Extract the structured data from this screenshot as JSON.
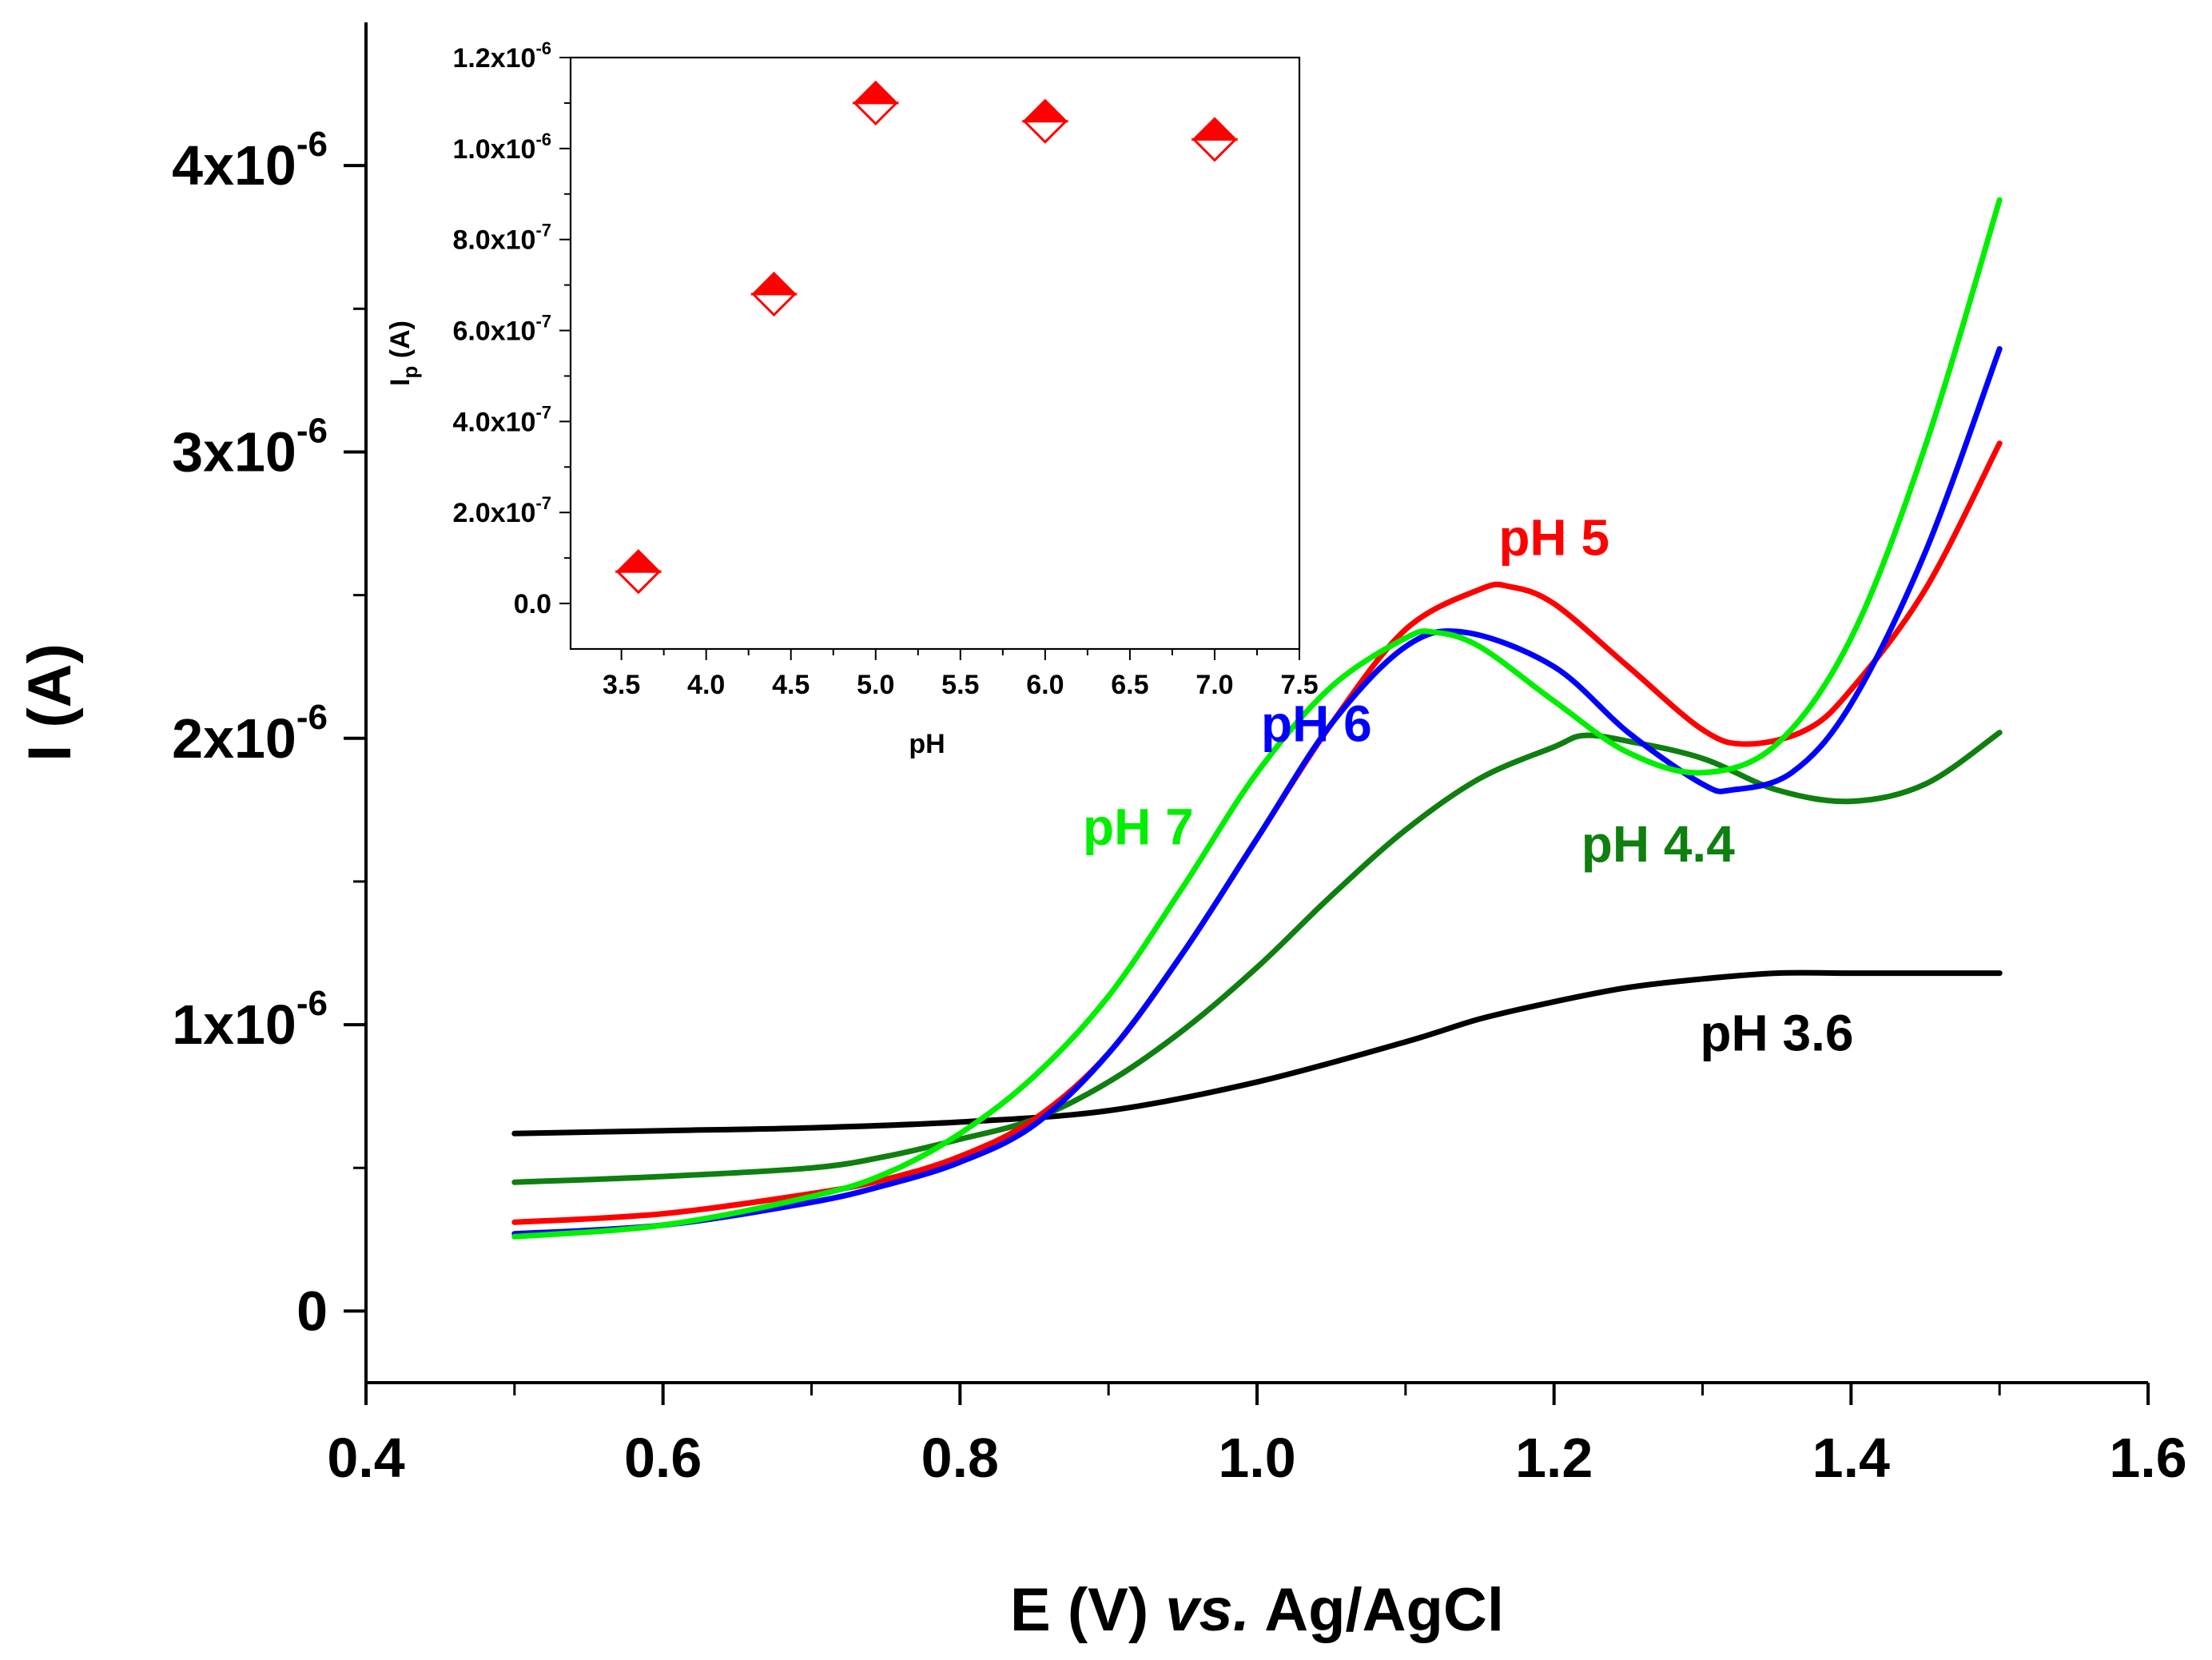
{
  "chart_data": [
    {
      "type": "line",
      "id": "main",
      "xlabel": "E (V) vs. Ag/AgCl",
      "xlabel_parts": [
        "E (V) ",
        "vs.",
        " Ag/AgCl"
      ],
      "ylabel": "I (A)",
      "xlim": [
        0.4,
        1.6
      ],
      "ylim": [
        -2.5e-07,
        4.5e-06
      ],
      "x_ticks": [
        0.4,
        0.6,
        0.8,
        1.0,
        1.2,
        1.4,
        1.6
      ],
      "x_tick_labels": [
        "0.4",
        "0.6",
        "0.8",
        "1.0",
        "1.2",
        "1.4",
        "1.6"
      ],
      "y_ticks": [
        0,
        1e-06,
        2e-06,
        3e-06,
        4e-06
      ],
      "y_tick_labels": [
        {
          "mantissa": "0",
          "exp": ""
        },
        {
          "mantissa": "1x10",
          "exp": "-6"
        },
        {
          "mantissa": "2x10",
          "exp": "-6"
        },
        {
          "mantissa": "3x10",
          "exp": "-6"
        },
        {
          "mantissa": "4x10",
          "exp": "-6"
        }
      ],
      "series": [
        {
          "name": "pH 3.6",
          "label": "pH 3.6",
          "color": "#000000",
          "label_color": "#000000",
          "points": [
            [
              0.5,
              6.2e-07
            ],
            [
              0.6,
              6.3e-07
            ],
            [
              0.7,
              6.4e-07
            ],
            [
              0.8,
              6.6e-07
            ],
            [
              0.9,
              7e-07
            ],
            [
              1.0,
              8e-07
            ],
            [
              1.1,
              9.4e-07
            ],
            [
              1.15,
              1.02e-06
            ],
            [
              1.2,
              1.08e-06
            ],
            [
              1.25,
              1.13e-06
            ],
            [
              1.3,
              1.16e-06
            ],
            [
              1.35,
              1.18e-06
            ],
            [
              1.4,
              1.18e-06
            ],
            [
              1.45,
              1.18e-06
            ],
            [
              1.5,
              1.18e-06
            ]
          ]
        },
        {
          "name": "pH 4.4",
          "label": "pH 4.4",
          "color": "#0f7f10",
          "label_color": "#0f7f10",
          "points": [
            [
              0.5,
              4.5e-07
            ],
            [
              0.6,
              4.7e-07
            ],
            [
              0.7,
              5e-07
            ],
            [
              0.75,
              5.4e-07
            ],
            [
              0.8,
              6e-07
            ],
            [
              0.85,
              6.7e-07
            ],
            [
              0.9,
              8e-07
            ],
            [
              0.95,
              9.8e-07
            ],
            [
              1.0,
              1.2e-06
            ],
            [
              1.05,
              1.45e-06
            ],
            [
              1.1,
              1.68e-06
            ],
            [
              1.15,
              1.86e-06
            ],
            [
              1.2,
              1.97e-06
            ],
            [
              1.22,
              2.01e-06
            ],
            [
              1.25,
              1.99e-06
            ],
            [
              1.3,
              1.93e-06
            ],
            [
              1.35,
              1.82e-06
            ],
            [
              1.4,
              1.78e-06
            ],
            [
              1.45,
              1.84e-06
            ],
            [
              1.5,
              2.02e-06
            ]
          ]
        },
        {
          "name": "pH 5",
          "label": "pH 5",
          "color": "#ff0000",
          "label_color": "#ff0000",
          "points": [
            [
              0.5,
              3.1e-07
            ],
            [
              0.6,
              3.4e-07
            ],
            [
              0.7,
              4.1e-07
            ],
            [
              0.75,
              4.6e-07
            ],
            [
              0.8,
              5.4e-07
            ],
            [
              0.85,
              6.7e-07
            ],
            [
              0.9,
              9e-07
            ],
            [
              0.95,
              1.25e-06
            ],
            [
              1.0,
              1.65e-06
            ],
            [
              1.05,
              2.05e-06
            ],
            [
              1.1,
              2.38e-06
            ],
            [
              1.15,
              2.52e-06
            ],
            [
              1.17,
              2.53e-06
            ],
            [
              1.2,
              2.47e-06
            ],
            [
              1.25,
              2.25e-06
            ],
            [
              1.3,
              2.03e-06
            ],
            [
              1.33,
              1.98e-06
            ],
            [
              1.37,
              2.03e-06
            ],
            [
              1.4,
              2.17e-06
            ],
            [
              1.45,
              2.52e-06
            ],
            [
              1.5,
              3.03e-06
            ]
          ]
        },
        {
          "name": "pH 6",
          "label": "pH 6",
          "color": "#0000ff",
          "label_color": "#0000ff",
          "points": [
            [
              0.5,
              2.7e-07
            ],
            [
              0.6,
              3e-07
            ],
            [
              0.7,
              3.8e-07
            ],
            [
              0.75,
              4.4e-07
            ],
            [
              0.8,
              5.2e-07
            ],
            [
              0.85,
              6.5e-07
            ],
            [
              0.9,
              9e-07
            ],
            [
              0.95,
              1.25e-06
            ],
            [
              1.0,
              1.65e-06
            ],
            [
              1.05,
              2.05e-06
            ],
            [
              1.1,
              2.32e-06
            ],
            [
              1.14,
              2.37e-06
            ],
            [
              1.2,
              2.25e-06
            ],
            [
              1.25,
              2.02e-06
            ],
            [
              1.3,
              1.84e-06
            ],
            [
              1.32,
              1.82e-06
            ],
            [
              1.36,
              1.88e-06
            ],
            [
              1.4,
              2.12e-06
            ],
            [
              1.45,
              2.65e-06
            ],
            [
              1.5,
              3.36e-06
            ]
          ]
        },
        {
          "name": "pH 7",
          "label": "pH 7",
          "color": "#00ee00",
          "label_color": "#00ee00",
          "points": [
            [
              0.5,
              2.6e-07
            ],
            [
              0.6,
              3e-07
            ],
            [
              0.7,
              4e-07
            ],
            [
              0.75,
              4.8e-07
            ],
            [
              0.8,
              6.2e-07
            ],
            [
              0.85,
              8.2e-07
            ],
            [
              0.9,
              1.1e-06
            ],
            [
              0.95,
              1.48e-06
            ],
            [
              1.0,
              1.88e-06
            ],
            [
              1.05,
              2.18e-06
            ],
            [
              1.1,
              2.35e-06
            ],
            [
              1.12,
              2.37e-06
            ],
            [
              1.15,
              2.32e-06
            ],
            [
              1.2,
              2.13e-06
            ],
            [
              1.25,
              1.95e-06
            ],
            [
              1.3,
              1.88e-06
            ],
            [
              1.35,
              1.98e-06
            ],
            [
              1.4,
              2.35e-06
            ],
            [
              1.45,
              3.02e-06
            ],
            [
              1.5,
              3.88e-06
            ]
          ]
        }
      ],
      "annotations": [
        {
          "text": "pH 5",
          "x": 1.2,
          "y": 2.64e-06,
          "color": "#ff0000"
        },
        {
          "text": "pH 6",
          "x": 1.04,
          "y": 1.99e-06,
          "color": "#0000ff"
        },
        {
          "text": "pH 7",
          "x": 0.92,
          "y": 1.63e-06,
          "color": "#00ee00"
        },
        {
          "text": "pH 4.4",
          "x": 1.27,
          "y": 1.57e-06,
          "color": "#0f7f10"
        },
        {
          "text": "pH 3.6",
          "x": 1.35,
          "y": 9.1e-07,
          "color": "#000000"
        }
      ]
    },
    {
      "type": "scatter",
      "id": "inset",
      "xlabel": "pH",
      "ylabel": "Ip (A)",
      "ylabel_parts": {
        "main": "I",
        "sub": "p",
        "rest": " (A)"
      },
      "xlim": [
        3.2,
        7.5
      ],
      "ylim": [
        -1e-07,
        1.2e-06
      ],
      "x_ticks": [
        3.5,
        4.0,
        4.5,
        5.0,
        5.5,
        6.0,
        6.5,
        7.0,
        7.5
      ],
      "x_tick_labels": [
        "3.5",
        "4.0",
        "4.5",
        "5.0",
        "5.5",
        "6.0",
        "6.5",
        "7.0",
        "7.5"
      ],
      "y_ticks": [
        0,
        2e-07,
        4e-07,
        6e-07,
        8e-07,
        1e-06,
        1.2e-06
      ],
      "y_tick_labels": [
        {
          "mantissa": "0.0",
          "exp": ""
        },
        {
          "mantissa": "2.0x10",
          "exp": "-7"
        },
        {
          "mantissa": "4.0x10",
          "exp": "-7"
        },
        {
          "mantissa": "6.0x10",
          "exp": "-7"
        },
        {
          "mantissa": "8.0x10",
          "exp": "-7"
        },
        {
          "mantissa": "1.0x10",
          "exp": "-6"
        },
        {
          "mantissa": "1.2x10",
          "exp": "-6"
        }
      ],
      "marker": "half-filled-diamond",
      "color": "#ff0000",
      "x": [
        3.6,
        4.4,
        5.0,
        6.0,
        7.0
      ],
      "y": [
        7e-08,
        6.8e-07,
        1.1e-06,
        1.06e-06,
        1.02e-06
      ]
    }
  ]
}
